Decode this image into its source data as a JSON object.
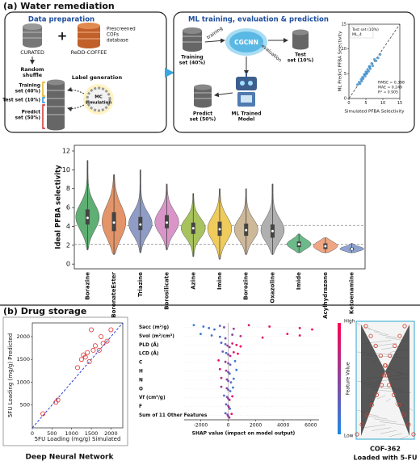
{
  "panels": {
    "a": {
      "label": "(a) Water remediation",
      "data_prep": {
        "title": "Data preparation",
        "curated": "CURATED",
        "redd": "ReDD-COFFEE",
        "prescreened": [
          "Prescreened",
          "COFs",
          "database"
        ],
        "shuffle": [
          "Random",
          "shuffle"
        ],
        "training": [
          "Training",
          "set (40%)"
        ],
        "test": "Test set (10%)",
        "predict": [
          "Predict",
          "set (50%)"
        ],
        "label_gen": "Label generation",
        "mc": [
          "MC",
          "simulation"
        ]
      },
      "ml": {
        "title": "ML training, evaluation & prediction",
        "training": [
          "Training",
          "set (40%)"
        ],
        "training_arrow": "training",
        "cgcnn": "CGCNN",
        "evaluation": "evaluation",
        "test": [
          "Test",
          "set (10%)"
        ],
        "model": [
          "ML Trained",
          "Model"
        ],
        "predict": [
          "Predict",
          "set (50%)"
        ]
      }
    },
    "b": {
      "label": "(b) Drug storage",
      "dnn_caption": "Deep Neural Network",
      "cof_name": "COF-362",
      "cof_caption": "Loaded with 5-FU"
    }
  },
  "chart_data": [
    {
      "type": "scatter",
      "legend_title": "Test set (10%)",
      "model": "ML_4",
      "xlabel": "Simulated PFBA Selectivity",
      "ylabel": "ML Predict PFBA Selectivity",
      "stats": [
        "RMSE = 0.398",
        "MAE = 0.249",
        "R² = 0.905"
      ],
      "x": [
        2.5,
        3,
        3.3,
        3.6,
        4,
        4.2,
        4.5,
        4.8,
        5,
        5.2,
        5.5,
        5.8,
        6,
        6.3,
        6.7,
        7,
        7.5,
        8,
        8.6,
        9.2,
        3.8,
        4.6,
        5.3,
        6.1
      ],
      "y": [
        2.8,
        3.3,
        3,
        3.9,
        4.3,
        4,
        4.8,
        4.5,
        5.4,
        5,
        5.9,
        5.5,
        6.4,
        6,
        7.1,
        6.6,
        7.9,
        7.6,
        8.2,
        8.9,
        3.5,
        4.9,
        5.1,
        6.5
      ],
      "color": "#3a8fd0",
      "marker": "filled",
      "diagonal_color": "#555555",
      "xlim": [
        0,
        15
      ],
      "ylim": [
        0,
        15
      ],
      "xticks": [
        0,
        5,
        10,
        15
      ],
      "yticks": [
        0,
        5,
        10,
        15
      ]
    },
    {
      "type": "violin",
      "ylabel": "Ideal PFBA selectivity",
      "categories": [
        "Borazine",
        "BoronateEster",
        "Triazine",
        "Borosilicate",
        "Azine",
        "Imine",
        "Borozine",
        "Oxazoline",
        "Imide",
        "Acylhydrazone",
        "Ketoenamine"
      ],
      "colors": [
        "#5fae73",
        "#e39468",
        "#8f9cc6",
        "#d995c8",
        "#a8c35e",
        "#efcb5c",
        "#cdb898",
        "#b0b0b0",
        "#6cb98a",
        "#f0a682",
        "#8fa3d3"
      ],
      "min": [
        1.5,
        1,
        1.2,
        1.5,
        0.8,
        0.5,
        1,
        1,
        1.2,
        1.2,
        1.2
      ],
      "q1": [
        4.2,
        3.5,
        3.6,
        3.8,
        3.2,
        3,
        3,
        2.8,
        1.8,
        1.6,
        1.45
      ],
      "median": [
        4.9,
        4.4,
        4.2,
        4.4,
        3.8,
        3.7,
        3.6,
        3.5,
        2.1,
        1.9,
        1.6
      ],
      "q3": [
        5.8,
        5.5,
        5,
        5.2,
        4.4,
        4.5,
        4.3,
        4.2,
        2.4,
        2.2,
        1.75
      ],
      "max": [
        11,
        9.5,
        10,
        8.5,
        7.5,
        8,
        8,
        8.5,
        3.2,
        2.8,
        2.2
      ],
      "reference_lines": [
        4.1,
        2.1
      ],
      "ylim": [
        -0.5,
        12.6
      ],
      "yticks": [
        0,
        2,
        4,
        6,
        8,
        10,
        12
      ]
    },
    {
      "type": "scatter",
      "xlabel": "5FU Loading (mg/g) Simulated",
      "ylabel": "5FU Loading (mg/g) Predicted",
      "x": [
        270,
        600,
        650,
        1150,
        1250,
        1300,
        1350,
        1400,
        1450,
        1500,
        1550,
        1600,
        1700,
        1750,
        1800,
        1900,
        2000
      ],
      "y": [
        310,
        560,
        610,
        1320,
        1500,
        1600,
        1550,
        1650,
        1450,
        2150,
        1700,
        1800,
        1700,
        2000,
        1850,
        1900,
        2150
      ],
      "color": "#e03030",
      "marker": "open-circle",
      "diagonal_color": "#1a2fd0",
      "xlim": [
        0,
        2300
      ],
      "ylim": [
        0,
        2300
      ],
      "xticks": [
        0,
        500,
        1000,
        1500,
        2000
      ],
      "yticks": [
        500,
        1000,
        1500,
        2000
      ]
    },
    {
      "type": "beeswarm",
      "xlabel": "SHAP value (impact on model output)",
      "colorbar_label": "Feature Value",
      "colorbar_high": "High",
      "colorbar_low": "Low",
      "colors": [
        "#1e88e5",
        "#ff0052"
      ],
      "features": [
        {
          "name": "Sacc (m²/g)",
          "values": [
            -2500,
            -1800,
            -1400,
            -1000,
            -600,
            -300,
            400,
            1500,
            3000,
            5200,
            6100
          ],
          "feature_values": [
            0.1,
            0.1,
            0.2,
            0.15,
            0.3,
            0.4,
            0.6,
            0.8,
            0.9,
            0.95,
            1
          ]
        },
        {
          "name": "Svol (m²/cm³)",
          "values": [
            -2000,
            -1200,
            -600,
            -200,
            300,
            900,
            2500,
            4300,
            5200
          ],
          "feature_values": [
            0.1,
            0.2,
            0.2,
            0.4,
            0.5,
            0.7,
            0.9,
            1,
            0.95
          ]
        },
        {
          "name": "PLD (Å)",
          "values": [
            -500,
            -200,
            -50,
            100,
            300,
            600,
            900
          ],
          "feature_values": [
            0.2,
            0.3,
            0.5,
            0.6,
            0.8,
            0.9,
            1
          ]
        },
        {
          "name": "LCD (Å)",
          "values": [
            -400,
            -150,
            0,
            150,
            400,
            700
          ],
          "feature_values": [
            0.3,
            0.2,
            0.5,
            0.7,
            0.9,
            1
          ]
        },
        {
          "name": "C",
          "values": [
            -700,
            -200,
            0,
            150,
            500
          ],
          "feature_values": [
            0.9,
            0.6,
            0.4,
            0.3,
            0.1
          ]
        },
        {
          "name": "H",
          "values": [
            -600,
            -150,
            0,
            100,
            600
          ],
          "feature_values": [
            0.8,
            0.6,
            0.4,
            0.2,
            0.1
          ]
        },
        {
          "name": "N",
          "values": [
            -500,
            -100,
            0,
            200,
            400
          ],
          "feature_values": [
            0.7,
            0.5,
            0.4,
            0.2,
            0.1
          ]
        },
        {
          "name": "O",
          "values": [
            -500,
            -100,
            0,
            150,
            350
          ],
          "feature_values": [
            0.6,
            0.5,
            0.3,
            0.2,
            0.1
          ]
        },
        {
          "name": "Vf (cm³/g)",
          "values": [
            -300,
            -80,
            0,
            100,
            300
          ],
          "feature_values": [
            0.2,
            0.4,
            0.5,
            0.7,
            0.9
          ]
        },
        {
          "name": "F",
          "values": [
            -150,
            0,
            50,
            120
          ],
          "feature_values": [
            0.3,
            0.5,
            0.6,
            0.2
          ]
        },
        {
          "name": "Sum of 11 Other Features",
          "values": [
            -200,
            -50,
            0,
            80,
            250
          ],
          "feature_values": [
            0.3,
            0.5,
            0.4,
            0.7,
            0.9
          ]
        }
      ],
      "xlim": [
        -3200,
        6600
      ],
      "xticks": [
        -2000,
        0,
        2000,
        4000,
        6000
      ]
    }
  ]
}
